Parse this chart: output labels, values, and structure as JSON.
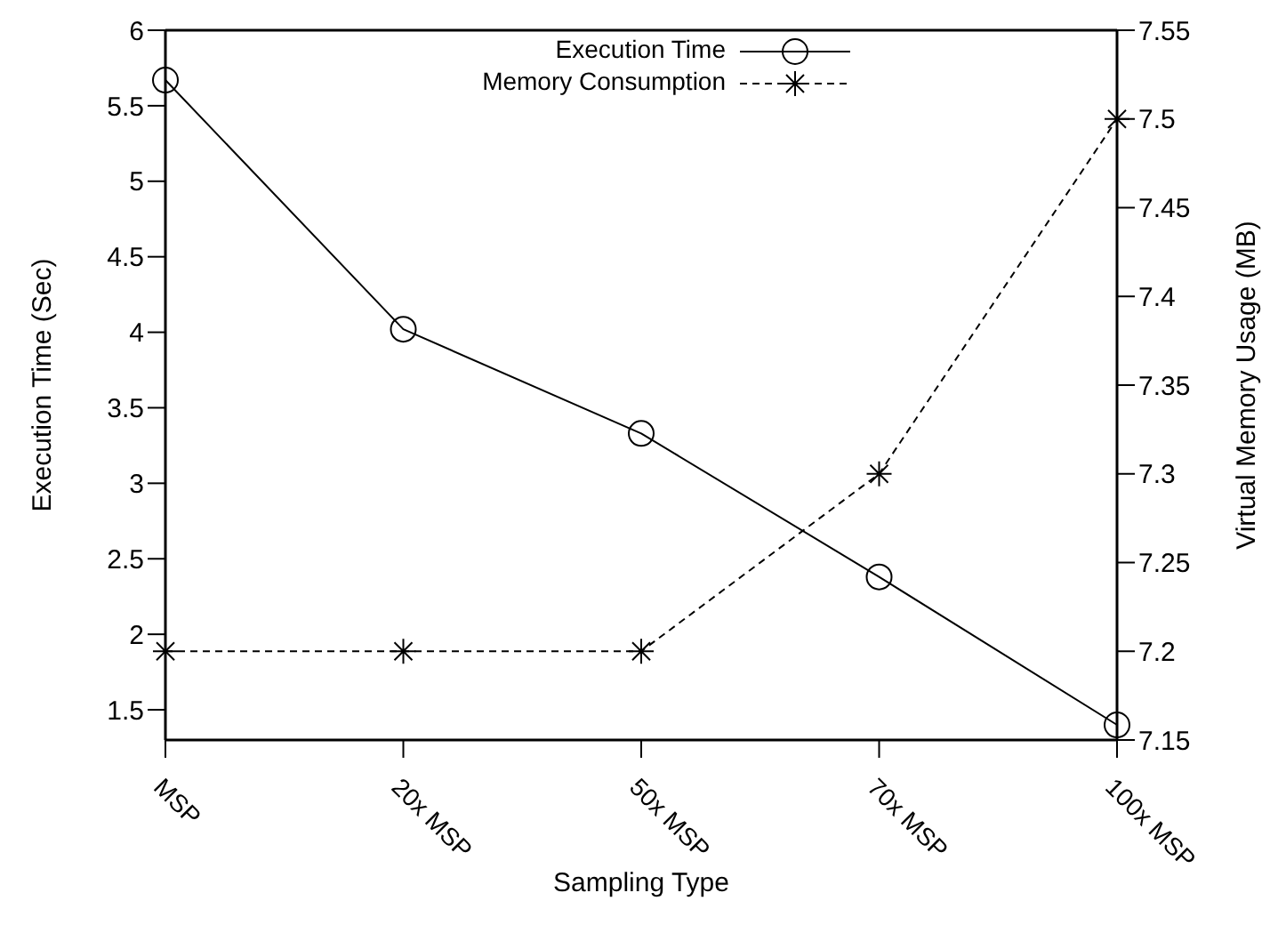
{
  "chart_data": {
    "type": "line",
    "xlabel": "Sampling Type",
    "ylabel": "Execution Time (Sec)",
    "y2label": "Virtual Memory Usage (MB)",
    "categories": [
      "MSP",
      "20x MSP",
      "50x MSP",
      "70x MSP",
      "100x MSP"
    ],
    "series": [
      {
        "name": "Execution Time",
        "color": "#000000",
        "values": [
          5.67,
          4.02,
          3.33,
          2.38,
          1.4
        ],
        "marker": "circle",
        "line_style": "solid"
      },
      {
        "name": "Memory Consumption",
        "color": "#000000",
        "values": [
          7.2,
          7.2,
          7.2,
          7.3,
          7.5
        ],
        "marker": "cross",
        "line_style": "dashed",
        "axis": "y2"
      }
    ],
    "ylim": [
      1.3,
      6
    ],
    "yticks": [
      1.5,
      2,
      2.5,
      3,
      3.5,
      4,
      4.5,
      5,
      5.5,
      6
    ],
    "y2lim": [
      7.15,
      7.55
    ],
    "y2ticks": [
      7.15,
      7.2,
      7.25,
      7.3,
      7.35,
      7.4,
      7.45,
      7.5,
      7.55
    ],
    "grid": false,
    "legend": "top"
  }
}
